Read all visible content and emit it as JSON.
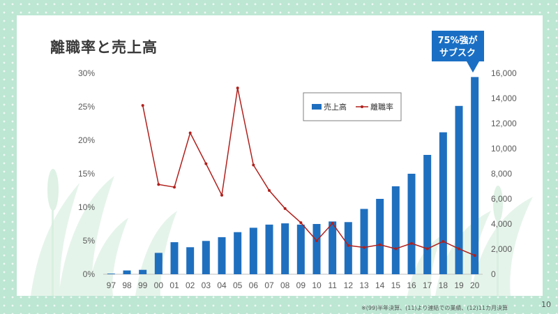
{
  "title": "離職率と売上高",
  "callout": {
    "line1": "75%強が",
    "line2": "サブスク"
  },
  "footnote": "※(99)半年決算、(11)より連結での業績、(12)11カ月決算",
  "page_number": "10",
  "colors": {
    "bar": "#1f6fbf",
    "line": "#b0201c",
    "callout": "#1a6fc4"
  },
  "chart_data": {
    "type": "bar+line",
    "title": "",
    "categories": [
      "97",
      "98",
      "99",
      "00",
      "01",
      "02",
      "03",
      "04",
      "05",
      "06",
      "07",
      "08",
      "09",
      "10",
      "11",
      "12",
      "13",
      "14",
      "15",
      "16",
      "17",
      "18",
      "19",
      "20"
    ],
    "series": [
      {
        "name": "売上高",
        "type": "bar",
        "axis": "right",
        "values": [
          50,
          300,
          350,
          1700,
          2550,
          2150,
          2650,
          2950,
          3350,
          3700,
          3950,
          4050,
          3950,
          4000,
          4200,
          4150,
          5200,
          6000,
          7000,
          8000,
          9500,
          11300,
          13400,
          15700
        ]
      },
      {
        "name": "離職率",
        "type": "line",
        "axis": "left",
        "values": [
          null,
          null,
          25.2,
          13.4,
          13.0,
          21.1,
          16.5,
          11.8,
          27.8,
          16.3,
          12.5,
          9.8,
          7.7,
          5.0,
          7.6,
          4.3,
          4.0,
          4.4,
          3.8,
          4.6,
          3.8,
          4.9,
          3.8,
          2.8
        ]
      }
    ],
    "y_left": {
      "min": 0,
      "max": 30,
      "step": 5,
      "ticks": [
        "0%",
        "5%",
        "10%",
        "15%",
        "20%",
        "25%",
        "30%"
      ]
    },
    "y_right": {
      "min": 0,
      "max": 16000,
      "step": 2000,
      "ticks": [
        "0",
        "2,000",
        "4,000",
        "6,000",
        "8,000",
        "10,000",
        "12,000",
        "14,000",
        "16,000"
      ]
    },
    "grid": false,
    "legend": {
      "position": "top-center",
      "items": [
        "売上高",
        "離職率"
      ]
    }
  }
}
